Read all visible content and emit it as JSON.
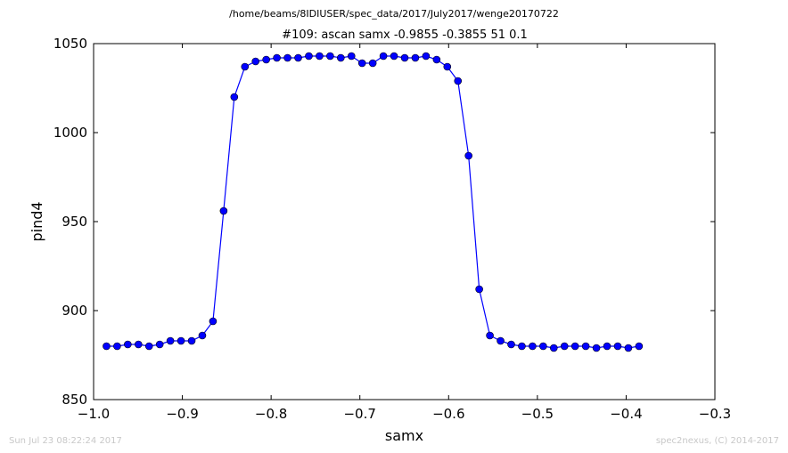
{
  "figure": {
    "path_title": "/home/beams/8IDIUSER/spec_data/2017/July2017/wenge20170722",
    "timestamp": "Sun Jul 23 08:22:24 2017",
    "credit": "spec2nexus, (C) 2014-2017"
  },
  "chart_data": {
    "type": "line",
    "title": "#109: ascan  samx -0.9855 -0.3855  51 0.1",
    "xlabel": "samx",
    "ylabel": "pind4",
    "xlim": [
      -1.0,
      -0.3
    ],
    "ylim": [
      850,
      1050
    ],
    "xticks": [
      -1.0,
      -0.9,
      -0.8,
      -0.7,
      -0.6,
      -0.5,
      -0.4,
      -0.3
    ],
    "xtick_labels": [
      "−1.0",
      "−0.9",
      "−0.8",
      "−0.7",
      "−0.6",
      "−0.5",
      "−0.4",
      "−0.3"
    ],
    "yticks": [
      850,
      900,
      950,
      1000,
      1050
    ],
    "ytick_labels": [
      "850",
      "900",
      "950",
      "1000",
      "1050"
    ],
    "grid": false,
    "marker": "circle",
    "color": "#0000ff",
    "x": [
      -0.9855,
      -0.9735,
      -0.9615,
      -0.9495,
      -0.9375,
      -0.9255,
      -0.9135,
      -0.9015,
      -0.8895,
      -0.8775,
      -0.8655,
      -0.8535,
      -0.8415,
      -0.8295,
      -0.8175,
      -0.8055,
      -0.7935,
      -0.7815,
      -0.7695,
      -0.7575,
      -0.7455,
      -0.7335,
      -0.7215,
      -0.7095,
      -0.6975,
      -0.6855,
      -0.6735,
      -0.6615,
      -0.6495,
      -0.6375,
      -0.6255,
      -0.6135,
      -0.6015,
      -0.5895,
      -0.5775,
      -0.5655,
      -0.5535,
      -0.5415,
      -0.5295,
      -0.5175,
      -0.5055,
      -0.4935,
      -0.4815,
      -0.4695,
      -0.4575,
      -0.4455,
      -0.4335,
      -0.4215,
      -0.4095,
      -0.3975,
      -0.3855
    ],
    "y": [
      880,
      880,
      881,
      881,
      880,
      881,
      883,
      883,
      883,
      886,
      894,
      956,
      1020,
      1037,
      1040,
      1041,
      1042,
      1042,
      1042,
      1043,
      1043,
      1043,
      1042,
      1043,
      1039,
      1039,
      1043,
      1043,
      1042,
      1042,
      1043,
      1041,
      1037,
      1029,
      987,
      912,
      886,
      883,
      881,
      880,
      880,
      880,
      879,
      880,
      880,
      880,
      879,
      880,
      880,
      879,
      880
    ]
  }
}
